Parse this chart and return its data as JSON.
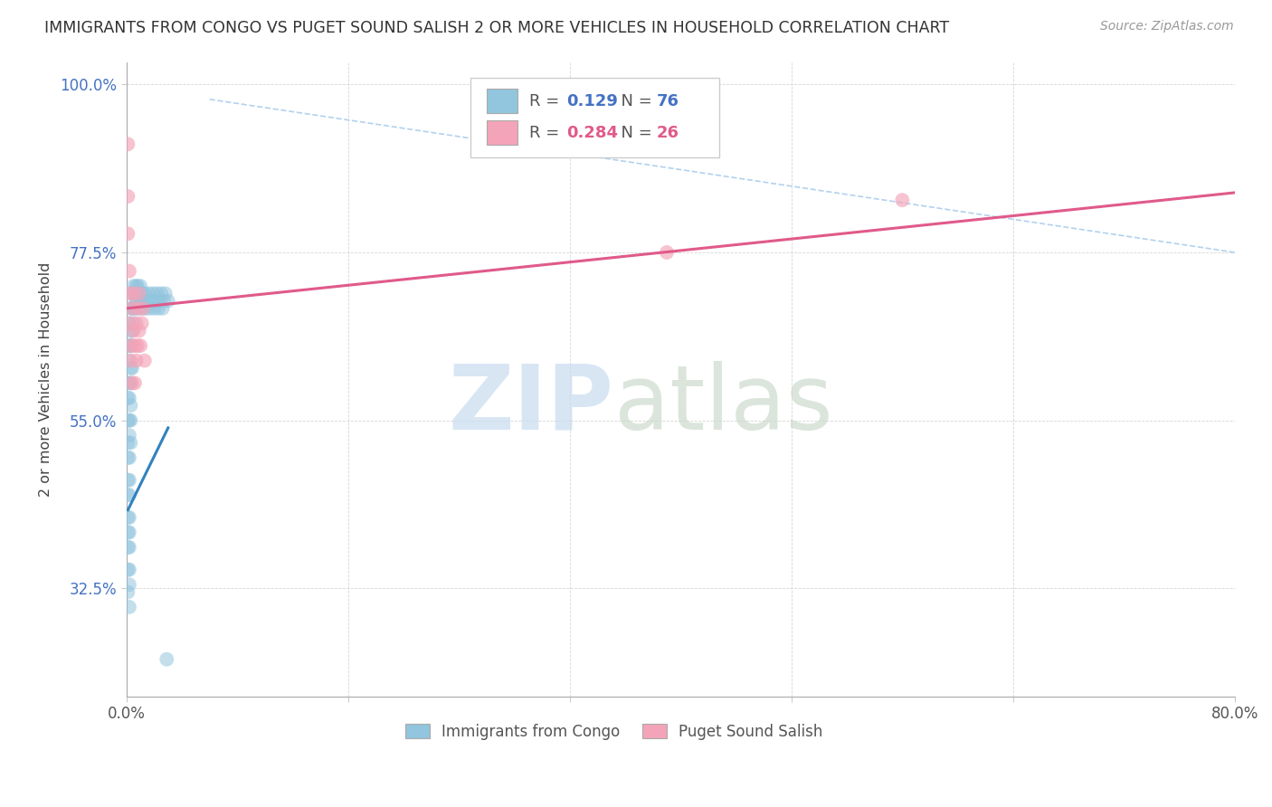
{
  "title": "IMMIGRANTS FROM CONGO VS PUGET SOUND SALISH 2 OR MORE VEHICLES IN HOUSEHOLD CORRELATION CHART",
  "source": "Source: ZipAtlas.com",
  "ylabel_label": "2 or more Vehicles in Household",
  "legend_label1": "Immigrants from Congo",
  "legend_label2": "Puget Sound Salish",
  "r1": "0.129",
  "n1": "76",
  "r2": "0.284",
  "n2": "26",
  "blue_color": "#92c5de",
  "pink_color": "#f4a4b8",
  "blue_line_color": "#3182bd",
  "pink_line_color": "#e05a8a",
  "blue_scatter_x": [
    0.001,
    0.001,
    0.001,
    0.001,
    0.001,
    0.001,
    0.001,
    0.001,
    0.001,
    0.001,
    0.001,
    0.001,
    0.001,
    0.002,
    0.002,
    0.002,
    0.002,
    0.002,
    0.002,
    0.002,
    0.002,
    0.002,
    0.002,
    0.002,
    0.002,
    0.002,
    0.002,
    0.002,
    0.002,
    0.003,
    0.003,
    0.003,
    0.003,
    0.003,
    0.003,
    0.003,
    0.003,
    0.004,
    0.004,
    0.004,
    0.004,
    0.004,
    0.005,
    0.005,
    0.005,
    0.006,
    0.006,
    0.007,
    0.007,
    0.008,
    0.008,
    0.009,
    0.009,
    0.01,
    0.01,
    0.011,
    0.011,
    0.012,
    0.013,
    0.014,
    0.015,
    0.016,
    0.017,
    0.018,
    0.019,
    0.02,
    0.021,
    0.022,
    0.023,
    0.024,
    0.025,
    0.026,
    0.027,
    0.028,
    0.029,
    0.03
  ],
  "blue_scatter_y": [
    0.65,
    0.6,
    0.58,
    0.55,
    0.52,
    0.5,
    0.47,
    0.45,
    0.42,
    0.4,
    0.38,
    0.35,
    0.32,
    0.68,
    0.65,
    0.63,
    0.6,
    0.58,
    0.55,
    0.53,
    0.5,
    0.47,
    0.45,
    0.42,
    0.4,
    0.38,
    0.35,
    0.33,
    0.3,
    0.7,
    0.67,
    0.65,
    0.62,
    0.6,
    0.57,
    0.55,
    0.52,
    0.72,
    0.7,
    0.67,
    0.65,
    0.62,
    0.73,
    0.7,
    0.68,
    0.72,
    0.7,
    0.73,
    0.71,
    0.73,
    0.71,
    0.72,
    0.7,
    0.73,
    0.71,
    0.72,
    0.7,
    0.71,
    0.72,
    0.7,
    0.71,
    0.72,
    0.7,
    0.71,
    0.72,
    0.7,
    0.71,
    0.72,
    0.7,
    0.71,
    0.72,
    0.7,
    0.71,
    0.72,
    0.23,
    0.71
  ],
  "pink_scatter_x": [
    0.001,
    0.001,
    0.001,
    0.002,
    0.002,
    0.002,
    0.003,
    0.003,
    0.004,
    0.004,
    0.005,
    0.005,
    0.006,
    0.006,
    0.007,
    0.007,
    0.008,
    0.008,
    0.009,
    0.009,
    0.01,
    0.011,
    0.012,
    0.39,
    0.56,
    0.013
  ],
  "pink_scatter_y": [
    0.92,
    0.85,
    0.8,
    0.75,
    0.72,
    0.68,
    0.65,
    0.63,
    0.7,
    0.6,
    0.67,
    0.72,
    0.65,
    0.6,
    0.68,
    0.63,
    0.7,
    0.65,
    0.72,
    0.67,
    0.65,
    0.68,
    0.7,
    0.775,
    0.845,
    0.63
  ],
  "blue_line_x": [
    0.001,
    0.03
  ],
  "blue_line_y": [
    0.43,
    0.54
  ],
  "pink_line_x": [
    0.0,
    0.8
  ],
  "pink_line_y": [
    0.7,
    0.855
  ],
  "dash_line_x": [
    0.06,
    0.8
  ],
  "dash_line_y": [
    0.98,
    0.775
  ],
  "xlim": [
    0.0,
    0.8
  ],
  "ylim": [
    0.18,
    1.03
  ],
  "xtick_positions": [
    0.0,
    0.16,
    0.32,
    0.48,
    0.64,
    0.8
  ],
  "xtick_labels": [
    "0.0%",
    "",
    "",
    "",
    "",
    "80.0%"
  ],
  "ytick_positions": [
    0.325,
    0.55,
    0.775,
    1.0
  ],
  "ytick_labels": [
    "32.5%",
    "55.0%",
    "77.5%",
    "100.0%"
  ]
}
